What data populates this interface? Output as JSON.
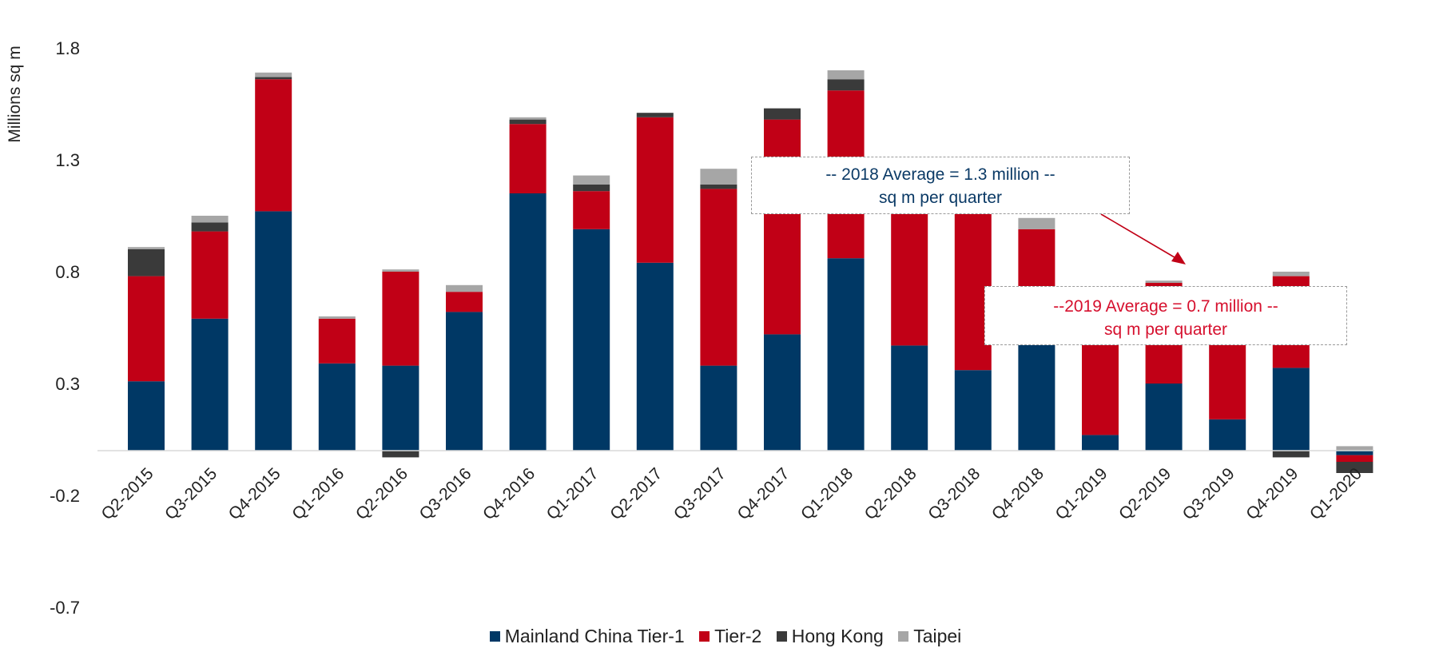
{
  "colors": {
    "tier1": "#003865",
    "tier2": "#c10016",
    "hongkong": "#3a3a3a",
    "taipei": "#a6a6a6",
    "callout_2018_text": "#0b3a66",
    "callout_2019_text": "#d6102e",
    "arrow": "#c10016"
  },
  "annotations": {
    "avg_2018_line1": "-- 2018 Average =  1.3 million --",
    "avg_2018_line2": "sq m per quarter",
    "avg_2019_line1": "--2019 Average = 0.7 million --",
    "avg_2019_line2": "sq m per quarter"
  },
  "chart_data": {
    "type": "bar",
    "stacked": true,
    "ylabel": "Millions sq m",
    "xlabel": "",
    "ylim": [
      -0.7,
      1.8
    ],
    "yticks": [
      "1.8",
      "1.3",
      "0.8",
      "0.3",
      "-0.2",
      "-0.7"
    ],
    "yticks_values": [
      1.8,
      1.3,
      0.8,
      0.3,
      -0.2,
      -0.7
    ],
    "grid": false,
    "legend_position": "bottom",
    "categories": [
      "Q2-2015",
      "Q3-2015",
      "Q4-2015",
      "Q1-2016",
      "Q2-2016",
      "Q3-2016",
      "Q4-2016",
      "Q1-2017",
      "Q2-2017",
      "Q3-2017",
      "Q4-2017",
      "Q1-2018",
      "Q2-2018",
      "Q3-2018",
      "Q4-2018",
      "Q1-2019",
      "Q2-2019",
      "Q3-2019",
      "Q4-2019",
      "Q1-2020"
    ],
    "series": [
      {
        "name": "Mainland China Tier-1",
        "color_key": "tier1",
        "values": [
          0.31,
          0.59,
          1.07,
          0.39,
          0.38,
          0.62,
          1.15,
          0.99,
          0.84,
          0.38,
          0.52,
          0.86,
          0.47,
          0.36,
          0.48,
          0.07,
          0.3,
          0.14,
          0.37,
          -0.02
        ]
      },
      {
        "name": "Tier-2",
        "color_key": "tier2",
        "values": [
          0.47,
          0.39,
          0.59,
          0.2,
          0.42,
          0.09,
          0.31,
          0.17,
          0.65,
          0.79,
          0.96,
          0.75,
          0.75,
          0.72,
          0.51,
          0.63,
          0.45,
          0.58,
          0.41,
          -0.03
        ]
      },
      {
        "name": "Hong Kong",
        "color_key": "hongkong",
        "values": [
          0.12,
          0.04,
          0.01,
          0.0,
          -0.03,
          0.0,
          0.02,
          0.03,
          0.02,
          0.02,
          0.05,
          0.05,
          0.0,
          0.0,
          0.0,
          0.0,
          0.0,
          0.0,
          -0.03,
          -0.05
        ]
      },
      {
        "name": "Taipei",
        "color_key": "taipei",
        "values": [
          0.01,
          0.03,
          0.02,
          0.01,
          0.01,
          0.03,
          0.01,
          0.04,
          0.0,
          0.07,
          0.0,
          0.04,
          0.01,
          0.0,
          0.05,
          0.0,
          0.01,
          0.0,
          0.02,
          0.02
        ]
      }
    ]
  }
}
